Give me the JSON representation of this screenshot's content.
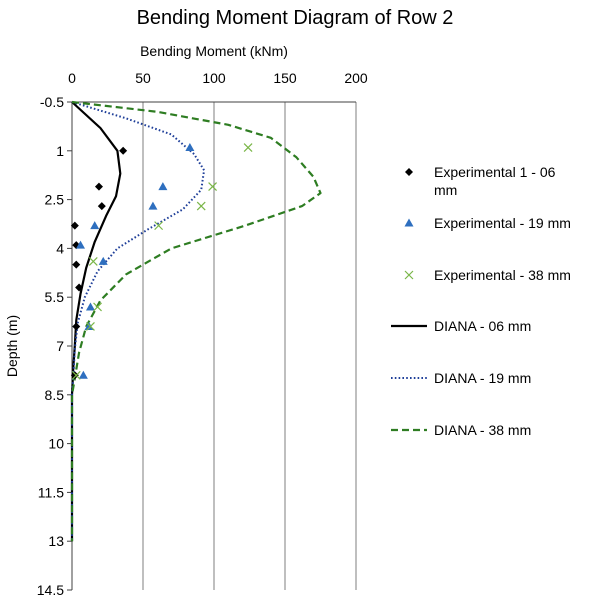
{
  "chart_data": {
    "type": "line",
    "title": "Bending Moment Diagram of Row 2",
    "xlabel": "Bending Moment (kNm)",
    "ylabel": "Depth (m)",
    "x_axis_position": "top",
    "y_axis_inverted": true,
    "xlim": [
      0,
      200
    ],
    "ylim": [
      -0.5,
      14.5
    ],
    "x_ticks": [
      "0",
      "50",
      "100",
      "150",
      "200"
    ],
    "y_ticks": [
      "-0.5",
      "1",
      "2.5",
      "4",
      "5.5",
      "7",
      "8.5",
      "10",
      "11.5",
      "13",
      "14.5"
    ],
    "grid": "vertical",
    "legend_position": "right",
    "series": [
      {
        "name": "Experimental 1 - 06 mm",
        "kind": "scatter",
        "marker": "diamond",
        "color": "#000000",
        "points": [
          [
            36,
            1.0
          ],
          [
            19,
            2.1
          ],
          [
            21,
            2.7
          ],
          [
            2,
            3.3
          ],
          [
            3,
            3.9
          ],
          [
            3,
            4.5
          ],
          [
            5,
            5.2
          ],
          [
            3,
            6.4
          ],
          [
            2,
            7.9
          ]
        ]
      },
      {
        "name": "Experimental - 19 mm",
        "kind": "scatter",
        "marker": "triangle",
        "color": "#2e6fbf",
        "points": [
          [
            83,
            0.9
          ],
          [
            64,
            2.1
          ],
          [
            57,
            2.7
          ],
          [
            16,
            3.3
          ],
          [
            6,
            3.9
          ],
          [
            22,
            4.4
          ],
          [
            13,
            5.8
          ],
          [
            12,
            6.4
          ],
          [
            8,
            7.9
          ]
        ]
      },
      {
        "name": "Experimental - 38 mm",
        "kind": "scatter",
        "marker": "x",
        "color": "#7ab648",
        "points": [
          [
            124,
            0.9
          ],
          [
            99,
            2.1
          ],
          [
            91,
            2.7
          ],
          [
            61,
            3.3
          ],
          [
            15,
            4.4
          ],
          [
            18,
            5.8
          ],
          [
            13,
            6.4
          ],
          [
            3,
            7.9
          ]
        ]
      },
      {
        "name": "DIANA - 06 mm",
        "kind": "line",
        "dash": "solid",
        "color": "#000000",
        "points": [
          [
            0,
            -0.5
          ],
          [
            20,
            0.3
          ],
          [
            32,
            1.0
          ],
          [
            34,
            1.7
          ],
          [
            31,
            2.4
          ],
          [
            24,
            3.0
          ],
          [
            16,
            3.8
          ],
          [
            10,
            4.6
          ],
          [
            6,
            5.4
          ],
          [
            3,
            6.2
          ],
          [
            2,
            7.0
          ],
          [
            1,
            7.6
          ],
          [
            0,
            8.5
          ],
          [
            0,
            10
          ],
          [
            0,
            11.5
          ],
          [
            0,
            13
          ]
        ]
      },
      {
        "name": "DIANA - 19 mm",
        "kind": "line",
        "dash": "dotted",
        "color": "#1f3f99",
        "points": [
          [
            0,
            -0.5
          ],
          [
            38,
            0.0
          ],
          [
            70,
            0.5
          ],
          [
            86,
            1.1
          ],
          [
            93,
            1.6
          ],
          [
            91,
            2.2
          ],
          [
            78,
            2.8
          ],
          [
            54,
            3.4
          ],
          [
            32,
            4.0
          ],
          [
            18,
            4.7
          ],
          [
            9,
            5.5
          ],
          [
            4,
            6.3
          ],
          [
            2,
            7.1
          ],
          [
            1,
            7.9
          ],
          [
            0,
            8.5
          ],
          [
            0,
            10
          ],
          [
            0,
            11.5
          ],
          [
            0,
            13
          ]
        ]
      },
      {
        "name": "DIANA - 38 mm",
        "kind": "line",
        "dash": "dashed",
        "color": "#2e7d22",
        "points": [
          [
            0,
            -0.5
          ],
          [
            60,
            -0.2
          ],
          [
            110,
            0.2
          ],
          [
            140,
            0.6
          ],
          [
            158,
            1.2
          ],
          [
            170,
            1.8
          ],
          [
            175,
            2.3
          ],
          [
            162,
            2.7
          ],
          [
            122,
            3.3
          ],
          [
            70,
            4.0
          ],
          [
            38,
            4.8
          ],
          [
            20,
            5.6
          ],
          [
            10,
            6.4
          ],
          [
            5,
            7.2
          ],
          [
            2,
            8.0
          ],
          [
            0,
            8.5
          ],
          [
            0,
            10
          ],
          [
            0,
            11.5
          ],
          [
            0,
            13
          ]
        ]
      }
    ]
  }
}
